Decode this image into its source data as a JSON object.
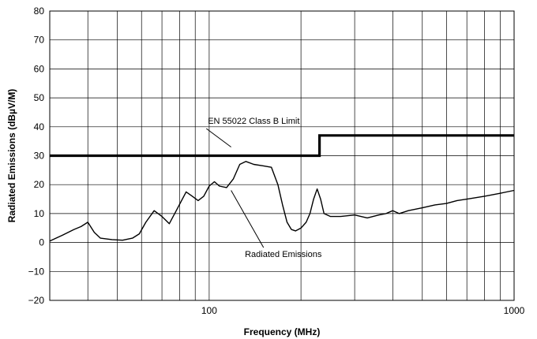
{
  "chart_data": {
    "type": "line",
    "title": "",
    "xlabel": "Frequency (MHz)",
    "ylabel": "Radiated Emissions (dBµV/M)",
    "x_scale": "log",
    "xlim": [
      30,
      1000
    ],
    "ylim": [
      -20,
      80
    ],
    "grid": true,
    "y_ticks": [
      {
        "value": -20,
        "label": "−20"
      },
      {
        "value": -10,
        "label": "−10"
      },
      {
        "value": 0,
        "label": "0"
      },
      {
        "value": 10,
        "label": "10"
      },
      {
        "value": 20,
        "label": "20"
      },
      {
        "value": 30,
        "label": "30"
      },
      {
        "value": 40,
        "label": "40"
      },
      {
        "value": 50,
        "label": "50"
      },
      {
        "value": 60,
        "label": "60"
      },
      {
        "value": 70,
        "label": "70"
      },
      {
        "value": 80,
        "label": "80"
      }
    ],
    "x_ticks": [
      {
        "value": 100,
        "label": "100"
      },
      {
        "value": 1000,
        "label": "1000"
      }
    ],
    "series": [
      {
        "name": "EN 55022 Class B Limit",
        "color": "#000000",
        "points": [
          [
            30,
            30
          ],
          [
            230,
            30
          ],
          [
            230,
            37
          ],
          [
            1000,
            37
          ]
        ]
      },
      {
        "name": "Radiated Emissions",
        "color": "#000000",
        "points": [
          [
            30,
            0.5
          ],
          [
            33,
            2.5
          ],
          [
            36,
            4.5
          ],
          [
            38,
            5.5
          ],
          [
            40,
            7
          ],
          [
            42,
            3.5
          ],
          [
            44,
            1.5
          ],
          [
            48,
            1
          ],
          [
            52,
            0.8
          ],
          [
            56,
            1.5
          ],
          [
            59,
            3
          ],
          [
            62,
            7
          ],
          [
            66,
            11
          ],
          [
            70,
            9
          ],
          [
            74,
            6.5
          ],
          [
            78,
            11
          ],
          [
            84,
            17.5
          ],
          [
            88,
            16
          ],
          [
            92,
            14.5
          ],
          [
            96,
            16
          ],
          [
            100,
            19.5
          ],
          [
            104,
            21
          ],
          [
            108,
            19.5
          ],
          [
            114,
            19
          ],
          [
            120,
            22
          ],
          [
            126,
            27
          ],
          [
            132,
            28
          ],
          [
            140,
            27
          ],
          [
            150,
            26.5
          ],
          [
            160,
            26
          ],
          [
            168,
            20
          ],
          [
            174,
            13
          ],
          [
            180,
            7
          ],
          [
            186,
            4.5
          ],
          [
            192,
            4
          ],
          [
            200,
            5
          ],
          [
            208,
            7
          ],
          [
            214,
            10
          ],
          [
            220,
            15
          ],
          [
            226,
            18.5
          ],
          [
            232,
            15
          ],
          [
            238,
            10
          ],
          [
            250,
            9
          ],
          [
            270,
            9
          ],
          [
            300,
            9.5
          ],
          [
            330,
            8.5
          ],
          [
            360,
            9.5
          ],
          [
            380,
            10
          ],
          [
            400,
            11
          ],
          [
            420,
            10
          ],
          [
            450,
            11
          ],
          [
            500,
            12
          ],
          [
            550,
            13
          ],
          [
            600,
            13.5
          ],
          [
            650,
            14.5
          ],
          [
            700,
            15
          ],
          [
            800,
            16
          ],
          [
            900,
            17
          ],
          [
            1000,
            18
          ]
        ]
      }
    ],
    "annotations": [
      {
        "text": "EN 55022 Class B Limit",
        "anchor": [
          140,
          41
        ],
        "target": [
          118,
          33
        ]
      },
      {
        "text": "Radiated Emissions",
        "anchor": [
          175,
          -5
        ],
        "target": [
          118,
          18
        ]
      }
    ]
  }
}
